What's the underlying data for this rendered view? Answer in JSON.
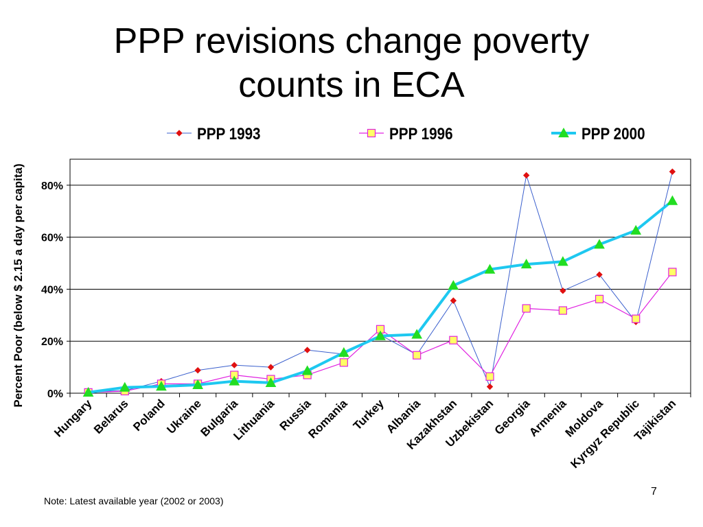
{
  "slide": {
    "title_line1": "PPP revisions change poverty",
    "title_line2": "counts in ECA",
    "note": "Note: Latest available year (2002 or 2003)",
    "page_number": "7"
  },
  "chart_data": {
    "type": "line",
    "ylabel": "Percent Poor (below $ 2.15 a day per capita)",
    "ylim": [
      0,
      90
    ],
    "yticks": [
      0,
      20,
      40,
      60,
      80
    ],
    "ytick_labels": [
      "0%",
      "20%",
      "40%",
      "60%",
      "80%"
    ],
    "grid": "horizontal",
    "legend_position": "top",
    "categories": [
      "Hungary",
      "Belarus",
      "Poland",
      "Ukraine",
      "Bulgaria",
      "Lithuania",
      "Russia",
      "Romania",
      "Turkey",
      "Albania",
      "Kazakhstan",
      "Uzbekistan",
      "Georgia",
      "Armenia",
      "Moldova",
      "Kyrgyz Republic",
      "Tajikistan"
    ],
    "series": [
      {
        "name": "PPP 1993",
        "color": "#3a5fcd",
        "marker": "diamond",
        "marker_color": "#e01010",
        "values": [
          0.5,
          1,
          4.6,
          8.8,
          10.8,
          10,
          16.6,
          15,
          22.4,
          14.8,
          35.6,
          2.5,
          83.8,
          39.4,
          45.6,
          27.4,
          85.2
        ]
      },
      {
        "name": "PPP 1996",
        "color": "#e020e0",
        "marker": "square",
        "marker_color": "#ffff66",
        "values": [
          0.3,
          0.8,
          3.6,
          3.6,
          7,
          5.4,
          7,
          11.8,
          24.6,
          14.6,
          20.4,
          6.4,
          32.6,
          31.8,
          36.2,
          28.6,
          46.6
        ]
      },
      {
        "name": "PPP 2000",
        "color": "#1ec8f0",
        "marker": "triangle",
        "marker_color": "#22dd22",
        "values": [
          0.3,
          2.2,
          2.6,
          3.2,
          4.6,
          4,
          8.6,
          15.6,
          22,
          22.6,
          41.4,
          47.6,
          49.6,
          50.6,
          57.2,
          62.6,
          74
        ]
      }
    ]
  }
}
